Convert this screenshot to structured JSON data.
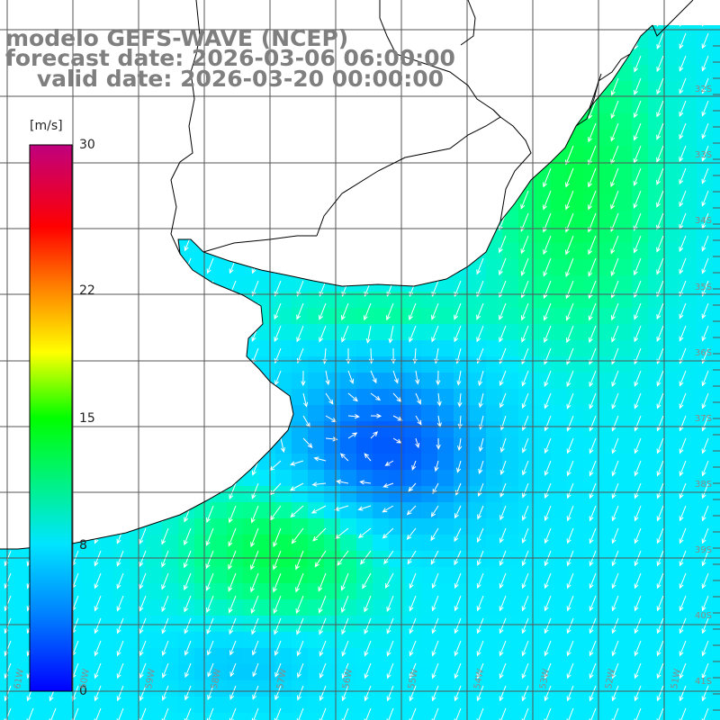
{
  "title": {
    "line1": "modelo GEFS-WAVE (NCEP)",
    "line2": "forecast date: 2026-03-06 06:00:00",
    "line3": "    valid date: 2026-03-20 00:00:00"
  },
  "colorbar": {
    "unit": "[m/s]",
    "ticks": [
      "30",
      "22",
      "15",
      "8",
      "0"
    ],
    "tick_values": [
      30,
      22,
      15,
      8,
      0
    ],
    "stops": [
      "#0000ff",
      "#0080ff",
      "#00e5ff",
      "#00ff00",
      "#ffff00",
      "#ff8000",
      "#ff0000",
      "#c0007f"
    ]
  },
  "latitude_labels": [
    "32S",
    "33S",
    "34S",
    "35S",
    "36S",
    "37S",
    "38S",
    "39S",
    "40S",
    "41S"
  ],
  "longitude_labels": [
    "61W",
    "60W",
    "59W",
    "58W",
    "57W",
    "56W",
    "55W",
    "54W",
    "53W",
    "52W",
    "51W"
  ],
  "colors": {
    "grid": "#555555",
    "coast": "#000000",
    "arrows": "#ffffff",
    "low_wind": "#0030ff",
    "mid_wind": "#00ccff",
    "high_wind": "#00ff50"
  }
}
